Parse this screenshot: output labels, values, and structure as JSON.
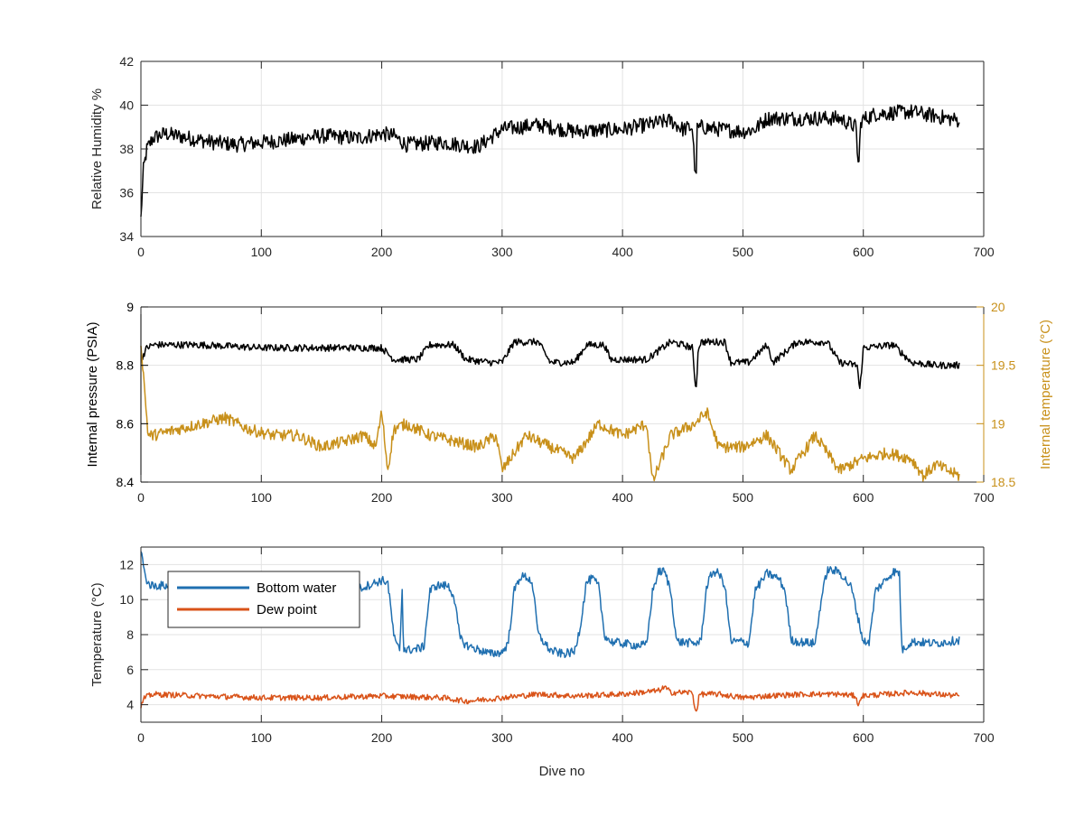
{
  "chart_data": [
    {
      "type": "line",
      "title": "",
      "xlabel": "",
      "ylabel": "Relative Humidity %",
      "xlim": [
        0,
        700
      ],
      "ylim": [
        34,
        42
      ],
      "xticks": [
        "0",
        "100",
        "200",
        "300",
        "400",
        "500",
        "600",
        "700"
      ],
      "yticks": [
        "34",
        "36",
        "38",
        "40",
        "42"
      ],
      "grid": true,
      "series": [
        {
          "color": "#000000",
          "x": [
            0,
            2,
            5,
            10,
            20,
            40,
            60,
            80,
            100,
            120,
            150,
            180,
            200,
            210,
            220,
            250,
            280,
            300,
            330,
            360,
            400,
            430,
            440,
            450,
            458,
            461,
            462,
            465,
            480,
            500,
            510,
            520,
            550,
            580,
            594,
            596,
            598,
            610,
            640,
            660,
            680
          ],
          "y": [
            34.8,
            37.0,
            38.0,
            38.5,
            38.7,
            38.5,
            38.3,
            38.2,
            38.3,
            38.4,
            38.6,
            38.5,
            38.7,
            38.6,
            38.2,
            38.3,
            38.1,
            38.9,
            39.1,
            38.8,
            38.9,
            39.2,
            39.3,
            38.9,
            39.0,
            36.3,
            38.9,
            39.0,
            38.9,
            38.8,
            38.9,
            39.4,
            39.4,
            39.4,
            39.0,
            37.0,
            39.3,
            39.6,
            39.7,
            39.5,
            39.3
          ],
          "noise": 0.35
        }
      ]
    },
    {
      "type": "line",
      "title": "",
      "xlabel": "",
      "ylabel": "Internal pressure (PSIA)",
      "y2label": "Internal temperature (°C)",
      "xlim": [
        0,
        700
      ],
      "ylim": [
        8.4,
        9
      ],
      "y2lim": [
        18.5,
        20
      ],
      "xticks": [
        "0",
        "100",
        "200",
        "300",
        "400",
        "500",
        "600",
        "700"
      ],
      "yticks": [
        "8.4",
        "8.6",
        "8.8",
        "9"
      ],
      "y2ticks": [
        "18.5",
        "19",
        "19.5",
        "20"
      ],
      "grid": true,
      "series": [
        {
          "axis": "left",
          "color": "#000000",
          "x": [
            0,
            5,
            10,
            50,
            100,
            150,
            200,
            205,
            210,
            230,
            240,
            260,
            270,
            290,
            300,
            310,
            330,
            340,
            360,
            370,
            385,
            390,
            420,
            440,
            450,
            458,
            461,
            463,
            465,
            485,
            490,
            505,
            520,
            525,
            545,
            570,
            580,
            595,
            597,
            600,
            625,
            640,
            660,
            680
          ],
          "y": [
            8.82,
            8.86,
            8.87,
            8.87,
            8.86,
            8.86,
            8.86,
            8.84,
            8.82,
            8.82,
            8.87,
            8.87,
            8.82,
            8.81,
            8.81,
            8.88,
            8.88,
            8.81,
            8.81,
            8.87,
            8.87,
            8.82,
            8.82,
            8.88,
            8.87,
            8.86,
            8.71,
            8.86,
            8.88,
            8.88,
            8.81,
            8.81,
            8.87,
            8.81,
            8.88,
            8.88,
            8.81,
            8.8,
            8.71,
            8.86,
            8.87,
            8.81,
            8.8,
            8.8
          ],
          "noise": 0.012
        },
        {
          "axis": "right",
          "color": "#c8901a",
          "x": [
            0,
            3,
            6,
            10,
            30,
            50,
            70,
            90,
            110,
            130,
            150,
            170,
            185,
            195,
            200,
            205,
            210,
            220,
            240,
            260,
            280,
            295,
            300,
            320,
            340,
            360,
            380,
            400,
            420,
            425,
            440,
            460,
            470,
            480,
            500,
            520,
            540,
            560,
            580,
            600,
            620,
            640,
            650,
            660,
            670,
            680
          ],
          "y": [
            19.7,
            19.3,
            18.9,
            18.9,
            18.95,
            19.0,
            19.05,
            18.95,
            18.9,
            18.9,
            18.8,
            18.85,
            18.9,
            18.8,
            19.1,
            18.6,
            18.95,
            19.0,
            18.9,
            18.85,
            18.8,
            18.9,
            18.6,
            18.9,
            18.8,
            18.7,
            19.0,
            18.9,
            19.0,
            18.5,
            18.9,
            19.0,
            19.1,
            18.8,
            18.8,
            18.9,
            18.6,
            18.9,
            18.6,
            18.7,
            18.75,
            18.7,
            18.55,
            18.65,
            18.6,
            18.55
          ],
          "noise": 0.05
        }
      ]
    },
    {
      "type": "line",
      "title": "",
      "xlabel": "Dive no",
      "ylabel": "Temperature (°C)",
      "xlim": [
        0,
        700
      ],
      "ylim": [
        3,
        13
      ],
      "xticks": [
        "0",
        "100",
        "200",
        "300",
        "400",
        "500",
        "600",
        "700"
      ],
      "yticks": [
        "4",
        "6",
        "8",
        "10",
        "12"
      ],
      "grid": true,
      "legend": "top-left",
      "series": [
        {
          "name": "Bottom water",
          "color": "#1f6fb0",
          "x": [
            0,
            3,
            6,
            10,
            20,
            50,
            100,
            150,
            180,
            200,
            205,
            210,
            212,
            215,
            217,
            218,
            220,
            230,
            235,
            240,
            245,
            255,
            260,
            265,
            270,
            290,
            300,
            305,
            310,
            315,
            320,
            325,
            330,
            340,
            350,
            360,
            365,
            370,
            375,
            380,
            385,
            390,
            410,
            420,
            425,
            430,
            435,
            440,
            445,
            460,
            465,
            470,
            475,
            480,
            485,
            490,
            500,
            505,
            510,
            520,
            530,
            535,
            540,
            545,
            560,
            565,
            570,
            580,
            590,
            600,
            605,
            610,
            625,
            630,
            632,
            640,
            660,
            680
          ],
          "y": [
            12.9,
            11.5,
            10.9,
            10.8,
            10.8,
            10.7,
            10.7,
            10.6,
            10.6,
            11.1,
            11.0,
            8.0,
            7.4,
            7.2,
            10.6,
            7.3,
            7.1,
            7.2,
            7.3,
            10.5,
            10.8,
            10.8,
            10.2,
            7.8,
            7.4,
            6.9,
            7.0,
            7.5,
            10.5,
            11.3,
            11.3,
            11.0,
            8.0,
            7.1,
            6.9,
            7.0,
            8.5,
            11.0,
            11.2,
            10.8,
            8.0,
            7.6,
            7.4,
            7.4,
            10.5,
            11.6,
            11.6,
            10.5,
            7.6,
            7.5,
            7.6,
            10.8,
            11.6,
            11.5,
            10.8,
            7.6,
            7.6,
            7.5,
            10.5,
            11.5,
            11.2,
            10.5,
            7.7,
            7.6,
            7.5,
            10.0,
            11.7,
            11.6,
            10.7,
            7.6,
            7.6,
            10.5,
            11.6,
            11.5,
            7.1,
            7.6,
            7.5,
            7.7
          ],
          "noise": 0.25
        },
        {
          "name": "Dew point",
          "color": "#d95319",
          "x": [
            0,
            3,
            10,
            50,
            100,
            150,
            200,
            250,
            270,
            300,
            330,
            360,
            400,
            430,
            435,
            440,
            458,
            461,
            464,
            480,
            500,
            520,
            550,
            580,
            594,
            596,
            598,
            620,
            640,
            660,
            680
          ],
          "y": [
            3.9,
            4.4,
            4.6,
            4.5,
            4.4,
            4.4,
            4.5,
            4.4,
            4.2,
            4.4,
            4.6,
            4.5,
            4.6,
            4.8,
            5.0,
            4.7,
            4.7,
            3.5,
            4.6,
            4.6,
            4.4,
            4.5,
            4.6,
            4.6,
            4.5,
            3.8,
            4.5,
            4.6,
            4.7,
            4.6,
            4.5
          ],
          "noise": 0.16
        }
      ]
    }
  ]
}
